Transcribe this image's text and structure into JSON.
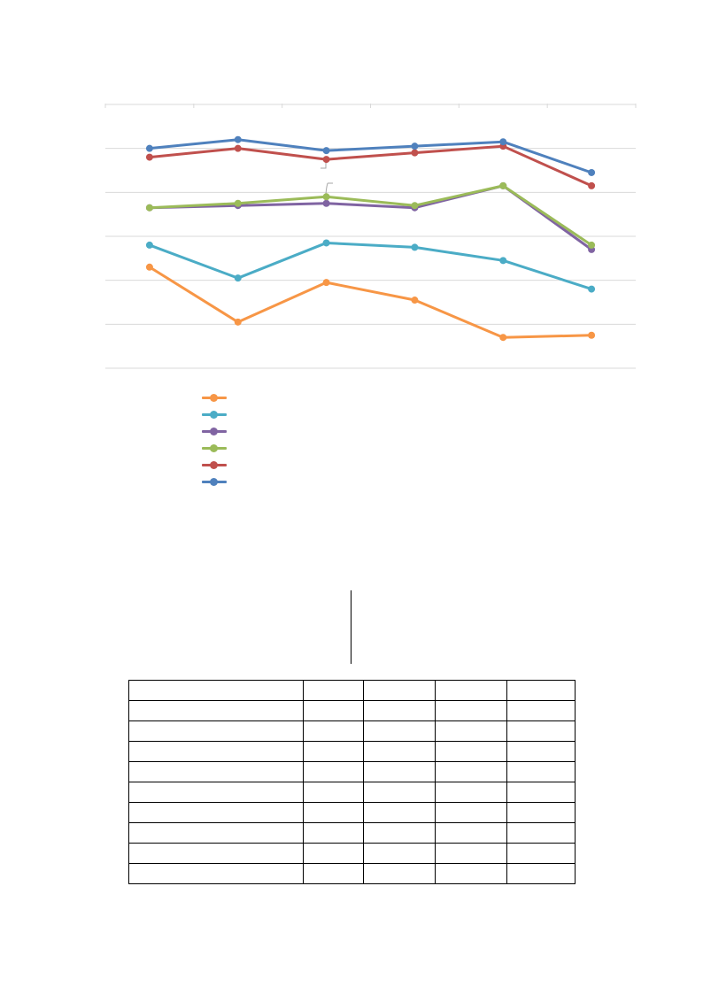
{
  "chart_data": {
    "type": "line",
    "title": "",
    "xlabel": "",
    "ylabel": "",
    "categories": [
      "",
      "",
      "",
      "",
      "",
      ""
    ],
    "ylim": [
      0,
      6
    ],
    "grid": true,
    "legend_position": "bottom-left",
    "series": [
      {
        "color": "#F79646",
        "values": [
          2.3,
          1.05,
          1.95,
          1.55,
          0.7,
          0.75
        ]
      },
      {
        "color": "#4BACC6",
        "values": [
          2.8,
          2.05,
          2.85,
          2.75,
          2.45,
          1.8
        ]
      },
      {
        "color": "#8064A2",
        "values": [
          3.65,
          3.7,
          3.75,
          3.65,
          4.15,
          2.7
        ]
      },
      {
        "color": "#9BBB59",
        "values": [
          3.65,
          3.75,
          3.9,
          3.7,
          4.15,
          2.8
        ]
      },
      {
        "color": "#C0504D",
        "values": [
          4.8,
          5.0,
          4.75,
          4.9,
          5.05,
          4.15
        ]
      },
      {
        "color": "#4F81BD",
        "values": [
          5.0,
          5.2,
          4.95,
          5.05,
          5.15,
          4.45
        ]
      }
    ]
  },
  "table": {
    "rows": [
      [
        "",
        "",
        "",
        "",
        ""
      ],
      [
        "",
        "",
        "",
        "",
        ""
      ],
      [
        "",
        "",
        "",
        "",
        ""
      ],
      [
        "",
        "",
        "",
        "",
        ""
      ],
      [
        "",
        "",
        "",
        "",
        ""
      ],
      [
        "",
        "",
        "",
        "",
        ""
      ],
      [
        "",
        "",
        "",
        "",
        ""
      ],
      [
        "",
        "",
        "",
        "",
        ""
      ],
      [
        "",
        "",
        "",
        "",
        ""
      ],
      [
        "",
        "",
        "",
        "",
        ""
      ]
    ]
  }
}
